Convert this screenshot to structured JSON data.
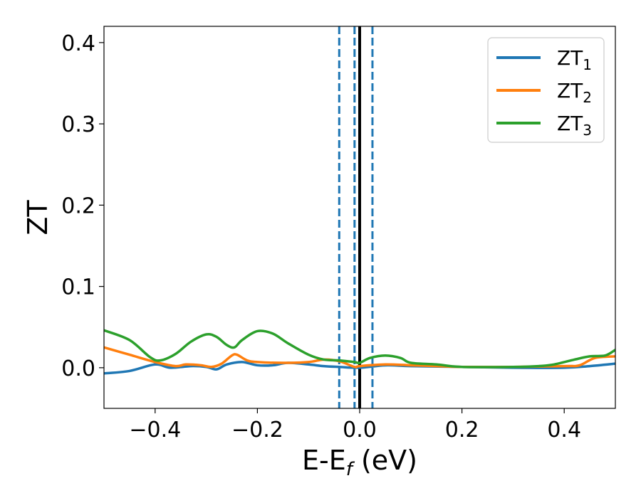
{
  "chart_data": {
    "type": "line",
    "title": "",
    "xlabel": {
      "main": "E-E",
      "sub": "f",
      "unit": " (eV)"
    },
    "ylabel": "ZT",
    "xlim": [
      -0.5,
      0.5
    ],
    "ylim": [
      -0.05,
      0.42
    ],
    "x_ticks": [
      -0.4,
      -0.2,
      0.0,
      0.2,
      0.4
    ],
    "x_tick_labels": [
      "−0.4",
      "−0.2",
      "0.0",
      "0.2",
      "0.4"
    ],
    "y_ticks": [
      0.0,
      0.1,
      0.2,
      0.3,
      0.4
    ],
    "y_tick_labels": [
      "0.0",
      "0.1",
      "0.2",
      "0.3",
      "0.4"
    ],
    "grid": false,
    "legend": {
      "placement": "top-right"
    },
    "vertical_lines": [
      {
        "x": 0.0,
        "style": "solid",
        "color": "#000000"
      },
      {
        "x": -0.04,
        "style": "dashed",
        "color": "#1f77b4"
      },
      {
        "x": -0.01,
        "style": "dashed",
        "color": "#1f77b4"
      },
      {
        "x": 0.025,
        "style": "dashed",
        "color": "#1f77b4"
      }
    ],
    "series": [
      {
        "name": "ZT",
        "name_sub": "1",
        "color": "#1f77b4",
        "x": [
          -0.5,
          -0.45,
          -0.4,
          -0.37,
          -0.33,
          -0.3,
          -0.28,
          -0.26,
          -0.23,
          -0.2,
          -0.17,
          -0.14,
          -0.1,
          -0.07,
          -0.04,
          0.0,
          0.05,
          0.1,
          0.2,
          0.3,
          0.4,
          0.45,
          0.5
        ],
        "y": [
          -0.007,
          -0.004,
          0.004,
          0.0,
          0.002,
          0.001,
          -0.002,
          0.004,
          0.007,
          0.003,
          0.003,
          0.006,
          0.004,
          0.002,
          0.001,
          0.0,
          0.003,
          0.002,
          0.001,
          0.0,
          0.0,
          0.002,
          0.005
        ]
      },
      {
        "name": "ZT",
        "name_sub": "2",
        "color": "#ff7f0e",
        "x": [
          -0.5,
          -0.45,
          -0.4,
          -0.36,
          -0.34,
          -0.31,
          -0.29,
          -0.27,
          -0.25,
          -0.24,
          -0.22,
          -0.2,
          -0.15,
          -0.1,
          -0.07,
          -0.04,
          -0.01,
          0.0,
          0.05,
          0.1,
          0.15,
          0.2,
          0.3,
          0.4,
          0.43,
          0.46,
          0.5
        ],
        "y": [
          0.025,
          0.016,
          0.007,
          0.002,
          0.004,
          0.003,
          0.001,
          0.005,
          0.015,
          0.016,
          0.009,
          0.007,
          0.006,
          0.007,
          0.01,
          0.008,
          0.001,
          0.002,
          0.004,
          0.003,
          0.002,
          0.001,
          0.001,
          0.002,
          0.003,
          0.012,
          0.014
        ]
      },
      {
        "name": "ZT",
        "name_sub": "3",
        "color": "#2ca02c",
        "x": [
          -0.5,
          -0.45,
          -0.41,
          -0.39,
          -0.36,
          -0.33,
          -0.3,
          -0.28,
          -0.26,
          -0.245,
          -0.23,
          -0.2,
          -0.17,
          -0.14,
          -0.1,
          -0.07,
          -0.04,
          -0.01,
          0.0,
          0.02,
          0.05,
          0.08,
          0.1,
          0.15,
          0.2,
          0.3,
          0.35,
          0.38,
          0.42,
          0.45,
          0.48,
          0.5
        ],
        "y": [
          0.046,
          0.034,
          0.013,
          0.009,
          0.017,
          0.032,
          0.041,
          0.038,
          0.028,
          0.025,
          0.034,
          0.045,
          0.042,
          0.03,
          0.016,
          0.01,
          0.009,
          0.007,
          0.006,
          0.012,
          0.015,
          0.012,
          0.006,
          0.004,
          0.001,
          0.001,
          0.002,
          0.004,
          0.01,
          0.014,
          0.015,
          0.022
        ]
      }
    ]
  }
}
